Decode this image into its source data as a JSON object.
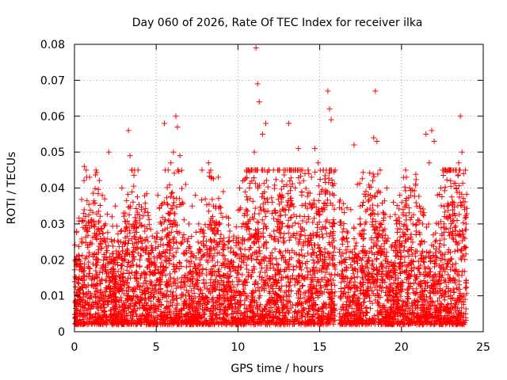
{
  "chart_data": {
    "type": "scatter",
    "title": "Day 060 of 2026, Rate Of TEC Index for receiver ilka",
    "xlabel": "GPS time / hours",
    "ylabel": "ROTI / TECUs",
    "xlim": [
      0,
      25
    ],
    "ylim": [
      0,
      0.08
    ],
    "x_ticks": [
      0,
      5,
      10,
      15,
      20,
      25
    ],
    "x_tick_labels": [
      "0",
      "5",
      "10",
      "15",
      "20",
      "25"
    ],
    "y_ticks": [
      0,
      0.01,
      0.02,
      0.03,
      0.04,
      0.05,
      0.06,
      0.07,
      0.08
    ],
    "y_tick_labels": [
      "0",
      "0.01",
      "0.02",
      "0.03",
      "0.04",
      "0.05",
      "0.06",
      "0.07",
      "0.08"
    ],
    "grid": true,
    "marker": "+",
    "series": [
      {
        "name": "ROTI",
        "color": "#ff0000",
        "x": [
          0.05,
          0.15,
          0.35,
          0.5,
          0.6,
          0.75,
          0.9,
          1.1,
          1.3,
          1.5,
          1.7,
          1.9,
          2.1,
          2.3,
          2.5,
          2.7,
          2.9,
          3.1,
          3.3,
          3.4,
          3.5,
          3.7,
          3.9,
          4.1,
          4.3,
          4.5,
          4.7,
          4.9,
          5.1,
          5.3,
          5.5,
          5.7,
          5.9,
          6.05,
          6.2,
          6.3,
          6.45,
          6.6,
          6.8,
          7.0,
          7.2,
          7.4,
          7.6,
          7.8,
          8.0,
          8.2,
          8.35,
          8.5,
          8.7,
          8.9,
          9.1,
          9.3,
          9.5,
          9.7,
          9.9,
          10.1,
          10.3,
          10.5,
          10.7,
          10.85,
          11.0,
          11.1,
          11.2,
          11.3,
          11.5,
          11.7,
          11.9,
          12.1,
          12.3,
          12.5,
          12.7,
          12.9,
          13.1,
          13.3,
          13.5,
          13.7,
          13.9,
          14.1,
          14.3,
          14.5,
          14.7,
          14.9,
          15.1,
          15.3,
          15.5,
          15.6,
          15.7,
          15.9,
          16.1,
          16.3,
          16.5,
          16.7,
          16.9,
          17.1,
          17.3,
          17.5,
          17.7,
          17.9,
          18.1,
          18.3,
          18.4,
          18.5,
          18.7,
          18.9,
          19.1,
          19.3,
          19.5,
          19.7,
          19.9,
          20.1,
          20.3,
          20.5,
          20.7,
          20.9,
          21.1,
          21.3,
          21.5,
          21.7,
          21.85,
          22.0,
          22.2,
          22.4,
          22.6,
          22.8,
          23.0,
          23.2,
          23.35,
          23.5,
          23.6,
          23.7,
          23.8,
          23.95
        ],
        "y": [
          0.004,
          0.021,
          0.012,
          0.031,
          0.046,
          0.043,
          0.022,
          0.015,
          0.02,
          0.028,
          0.038,
          0.03,
          0.05,
          0.032,
          0.035,
          0.025,
          0.04,
          0.033,
          0.056,
          0.049,
          0.045,
          0.03,
          0.025,
          0.034,
          0.028,
          0.018,
          0.022,
          0.026,
          0.038,
          0.03,
          0.058,
          0.027,
          0.047,
          0.05,
          0.06,
          0.057,
          0.049,
          0.036,
          0.041,
          0.03,
          0.035,
          0.038,
          0.03,
          0.045,
          0.037,
          0.047,
          0.043,
          0.035,
          0.03,
          0.025,
          0.039,
          0.032,
          0.028,
          0.022,
          0.026,
          0.04,
          0.042,
          0.034,
          0.04,
          0.042,
          0.05,
          0.079,
          0.069,
          0.064,
          0.055,
          0.058,
          0.045,
          0.036,
          0.033,
          0.03,
          0.038,
          0.034,
          0.058,
          0.045,
          0.04,
          0.051,
          0.038,
          0.044,
          0.032,
          0.043,
          0.051,
          0.047,
          0.039,
          0.034,
          0.067,
          0.062,
          0.059,
          0.03,
          0.016,
          0.012,
          0.02,
          0.025,
          0.034,
          0.052,
          0.041,
          0.03,
          0.026,
          0.034,
          0.038,
          0.054,
          0.067,
          0.053,
          0.045,
          0.031,
          0.04,
          0.032,
          0.036,
          0.03,
          0.038,
          0.034,
          0.043,
          0.04,
          0.03,
          0.028,
          0.035,
          0.03,
          0.055,
          0.047,
          0.056,
          0.053,
          0.038,
          0.04,
          0.03,
          0.035,
          0.042,
          0.031,
          0.04,
          0.047,
          0.06,
          0.05,
          0.044,
          0.03
        ]
      }
    ]
  }
}
